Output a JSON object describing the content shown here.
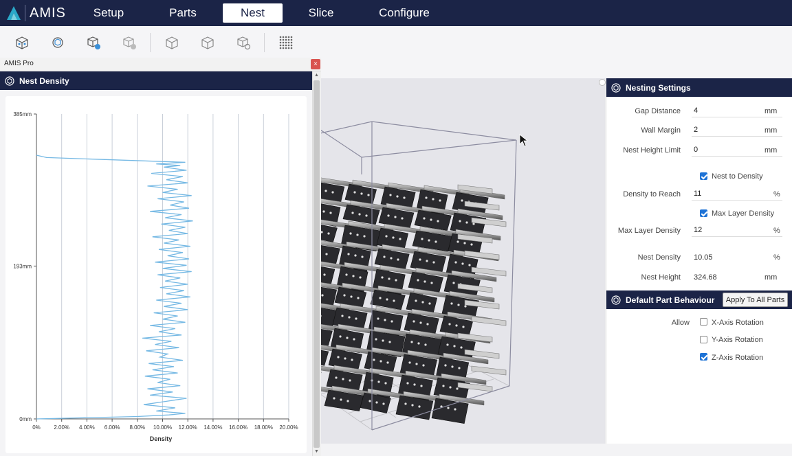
{
  "app": {
    "name": "AMIS"
  },
  "nav": {
    "tabs": [
      {
        "label": "Setup",
        "active": false
      },
      {
        "label": "Parts",
        "active": false
      },
      {
        "label": "Nest",
        "active": true
      },
      {
        "label": "Slice",
        "active": false
      },
      {
        "label": "Configure",
        "active": false
      }
    ]
  },
  "toolbar": {
    "tools": [
      "nest-all-icon",
      "nest-selected-icon",
      "add-part-icon",
      "remove-part-icon",
      "cube-front-icon",
      "cube-iso-icon",
      "cube-settings-icon",
      "density-grid-icon"
    ]
  },
  "window": {
    "title": "AMIS Pro",
    "close": "×"
  },
  "density_panel": {
    "title": "Nest Density",
    "icon": "nest-density-icon"
  },
  "chart_data": {
    "type": "line",
    "xlabel": "Density",
    "ylabel": "",
    "xlim": [
      0,
      20
    ],
    "ylim": [
      0,
      385
    ],
    "x_ticks": [
      "0%",
      "2.00%",
      "4.00%",
      "6.00%",
      "8.00%",
      "10.00%",
      "12.00%",
      "14.00%",
      "16.00%",
      "18.00%",
      "20.00%"
    ],
    "y_ticks": [
      {
        "value": 0,
        "label": "0mm"
      },
      {
        "value": 193,
        "label": "193mm"
      },
      {
        "value": 385,
        "label": "385mm"
      }
    ],
    "grid": true,
    "series": [
      {
        "color": "#76b9e4",
        "points": [
          [
            0,
            0
          ],
          [
            8.0,
            3
          ],
          [
            10.5,
            5
          ],
          [
            11.8,
            7
          ],
          [
            9.5,
            10
          ],
          [
            11.0,
            14
          ],
          [
            8.5,
            18
          ],
          [
            10.2,
            22
          ],
          [
            11.9,
            26
          ],
          [
            9.0,
            30
          ],
          [
            10.8,
            34
          ],
          [
            8.8,
            38
          ],
          [
            11.4,
            42
          ],
          [
            9.6,
            46
          ],
          [
            10.6,
            50
          ],
          [
            8.6,
            54
          ],
          [
            11.2,
            58
          ],
          [
            9.2,
            62
          ],
          [
            10.9,
            66
          ],
          [
            8.9,
            70
          ],
          [
            11.6,
            74
          ],
          [
            9.8,
            78
          ],
          [
            10.4,
            82
          ],
          [
            8.7,
            86
          ],
          [
            11.3,
            90
          ],
          [
            9.4,
            94
          ],
          [
            10.7,
            98
          ],
          [
            8.4,
            102
          ],
          [
            11.5,
            106
          ],
          [
            9.7,
            110
          ],
          [
            11.0,
            114
          ],
          [
            9.0,
            118
          ],
          [
            11.8,
            122
          ],
          [
            10.0,
            126
          ],
          [
            11.2,
            130
          ],
          [
            9.3,
            134
          ],
          [
            12.0,
            138
          ],
          [
            10.1,
            142
          ],
          [
            11.5,
            146
          ],
          [
            9.5,
            150
          ],
          [
            12.2,
            154
          ],
          [
            10.3,
            158
          ],
          [
            11.7,
            162
          ],
          [
            9.8,
            166
          ],
          [
            12.0,
            170
          ],
          [
            10.2,
            174
          ],
          [
            11.4,
            178
          ],
          [
            9.6,
            182
          ],
          [
            12.3,
            186
          ],
          [
            10.0,
            190
          ],
          [
            11.9,
            194
          ],
          [
            9.4,
            198
          ],
          [
            12.1,
            202
          ],
          [
            10.4,
            206
          ],
          [
            11.6,
            210
          ],
          [
            9.7,
            214
          ],
          [
            12.2,
            218
          ],
          [
            10.1,
            222
          ],
          [
            11.3,
            226
          ],
          [
            9.2,
            230
          ],
          [
            12.0,
            234
          ],
          [
            10.5,
            238
          ],
          [
            11.8,
            242
          ],
          [
            9.9,
            246
          ],
          [
            12.4,
            250
          ],
          [
            10.2,
            254
          ],
          [
            11.5,
            258
          ],
          [
            9.0,
            262
          ],
          [
            12.1,
            266
          ],
          [
            10.6,
            270
          ],
          [
            11.7,
            274
          ],
          [
            9.6,
            278
          ],
          [
            12.3,
            282
          ],
          [
            10.0,
            286
          ],
          [
            11.2,
            290
          ],
          [
            8.8,
            294
          ],
          [
            12.0,
            298
          ],
          [
            10.3,
            302
          ],
          [
            11.6,
            306
          ],
          [
            9.1,
            310
          ],
          [
            11.9,
            314
          ],
          [
            10.1,
            318
          ],
          [
            11.4,
            320
          ],
          [
            9.5,
            322
          ],
          [
            11.8,
            324
          ],
          [
            10.0,
            325
          ],
          [
            0.8,
            330
          ],
          [
            0,
            333
          ]
        ]
      }
    ]
  },
  "settings_panel": {
    "title": "Nesting Settings",
    "icon": "nesting-settings-icon",
    "gap_distance": {
      "label": "Gap Distance",
      "value": "4",
      "unit": "mm"
    },
    "wall_margin": {
      "label": "Wall Margin",
      "value": "2",
      "unit": "mm"
    },
    "nest_height_limit": {
      "label": "Nest Height Limit",
      "value": "0",
      "unit": "mm"
    },
    "nest_to_density": {
      "label": "Nest to Density",
      "checked": true
    },
    "density_to_reach": {
      "label": "Density to Reach",
      "value": "11",
      "unit": "%"
    },
    "max_layer_density_chk": {
      "label": "Max Layer Density",
      "checked": true
    },
    "max_layer_density": {
      "label": "Max Layer Density",
      "value": "12",
      "unit": "%"
    },
    "nest_density": {
      "label": "Nest Density",
      "value": "10.05",
      "unit": "%"
    },
    "nest_height": {
      "label": "Nest Height",
      "value": "324.68",
      "unit": "mm"
    }
  },
  "part_behaviour": {
    "title": "Default Part Behaviour",
    "icon": "part-behaviour-icon",
    "apply_label": "Apply To All Parts",
    "allow_label": "Allow",
    "x_rotation": {
      "label": "X-Axis Rotation",
      "checked": false
    },
    "y_rotation": {
      "label": "Y-Axis Rotation",
      "checked": false
    },
    "z_rotation": {
      "label": "Z-Axis Rotation",
      "checked": true
    }
  },
  "colors": {
    "nav_bg": "#1b2447",
    "accent": "#1e73d6",
    "close": "#d9534f",
    "chart_line": "#76b9e4"
  }
}
